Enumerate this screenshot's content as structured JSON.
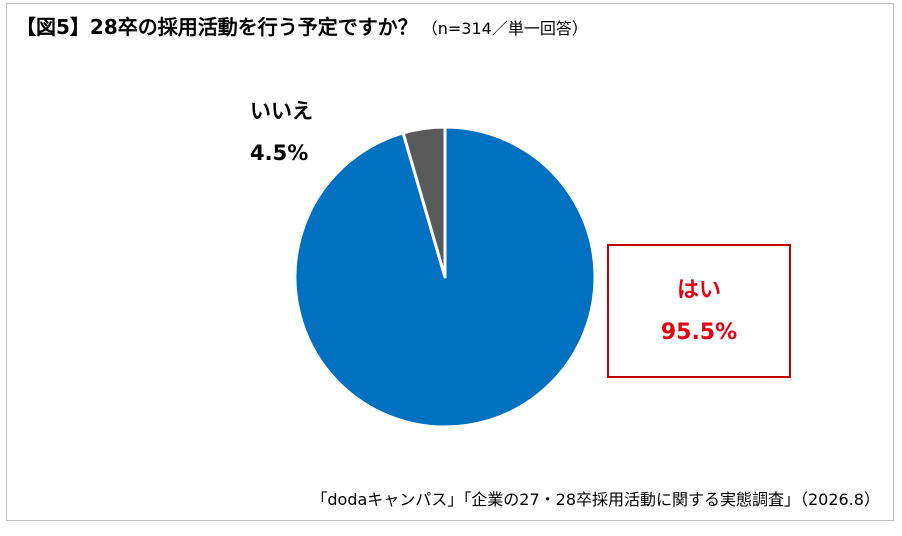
{
  "header": {
    "title": "【図5】28卒の採用活動を行う予定ですか？",
    "subtitle": "（n=314／単一回答）"
  },
  "chart_data": {
    "type": "pie",
    "slices": [
      {
        "label": "はい",
        "value": 95.5,
        "display": "95.5%",
        "color": "#0070c0"
      },
      {
        "label": "いいえ",
        "value": 4.5,
        "display": "4.5%",
        "color": "#595959"
      }
    ],
    "start_angle": "12 o'clock",
    "direction": "clockwise"
  },
  "footer": {
    "source": "「dodaキャンパス」「企業の27・28卒採用活動に関する実態調査」（2026.8）"
  }
}
